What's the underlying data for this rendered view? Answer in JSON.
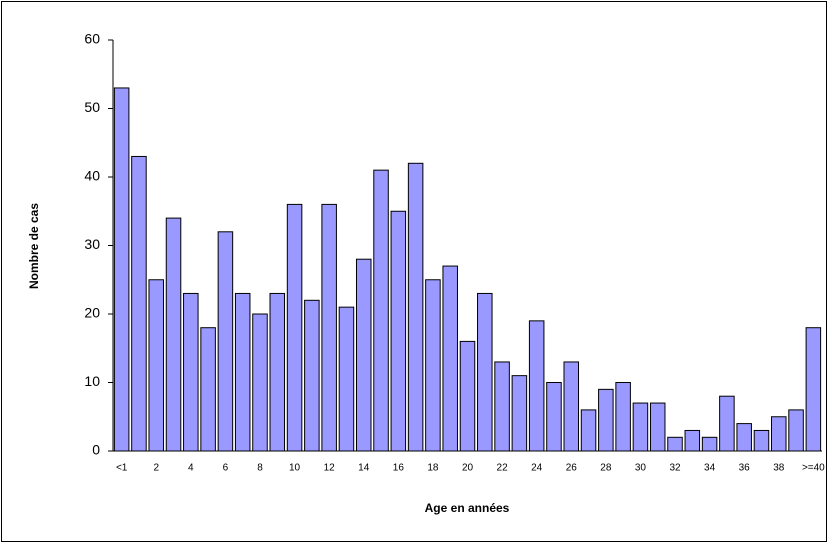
{
  "chart_data": {
    "type": "bar",
    "categories": [
      "<1",
      null,
      "2",
      null,
      "4",
      null,
      "6",
      null,
      "8",
      null,
      "10",
      null,
      "12",
      null,
      "14",
      null,
      "16",
      null,
      "18",
      null,
      "20",
      null,
      "22",
      null,
      "24",
      null,
      "26",
      null,
      "28",
      null,
      "30",
      null,
      "32",
      null,
      "34",
      null,
      "36",
      null,
      "38",
      null,
      ">=40"
    ],
    "values": [
      53,
      43,
      25,
      34,
      23,
      18,
      32,
      23,
      20,
      23,
      36,
      22,
      36,
      21,
      28,
      41,
      35,
      42,
      25,
      27,
      16,
      23,
      13,
      11,
      19,
      10,
      13,
      6,
      9,
      10,
      7,
      7,
      2,
      3,
      2,
      8,
      4,
      3,
      5,
      6,
      18
    ],
    "color": "#9999ff",
    "ylim": [
      0,
      60
    ],
    "yticks": [
      0,
      10,
      20,
      30,
      40,
      50,
      60
    ],
    "x_label": "Age en années",
    "y_label": "Nombre de cas",
    "grid": false
  }
}
